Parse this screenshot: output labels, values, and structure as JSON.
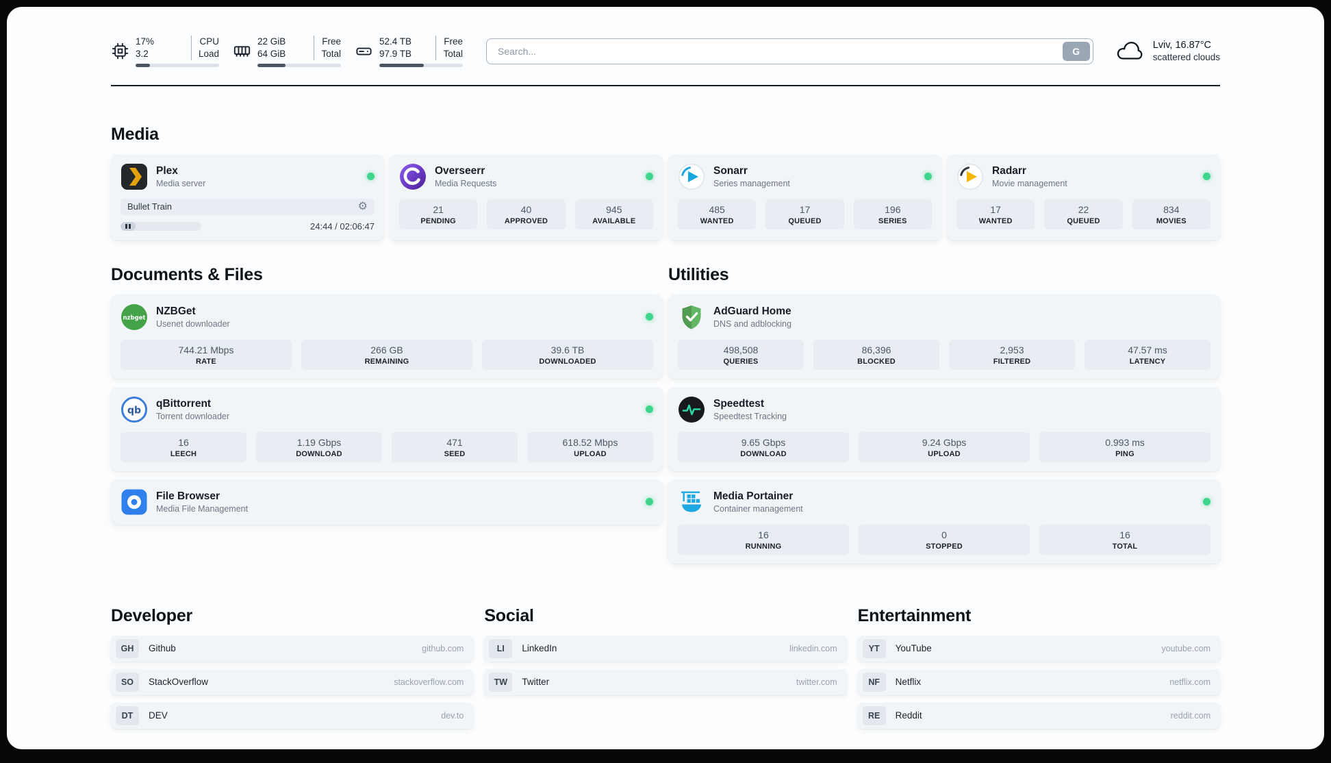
{
  "header": {
    "cpu": {
      "value_top": "17%",
      "value_bottom": "3.2",
      "label_top": "CPU",
      "label_bottom": "Load",
      "progress_pct": 17
    },
    "ram": {
      "value_top": "22 GiB",
      "value_bottom": "64 GiB",
      "label_top": "Free",
      "label_bottom": "Total",
      "progress_pct": 34
    },
    "disk": {
      "value_top": "52.4 TB",
      "value_bottom": "97.9 TB",
      "label_top": "Free",
      "label_bottom": "Total",
      "progress_pct": 53
    },
    "search": {
      "placeholder": "Search...",
      "button_label": "G"
    },
    "weather": {
      "location": "Lviv, 16.87°C",
      "condition": "scattered clouds"
    }
  },
  "icons": {
    "gear": "⚙"
  },
  "media": {
    "section_title": "Media",
    "plex": {
      "name": "Plex",
      "desc": "Media server",
      "now_playing": "Bullet Train",
      "time": "24:44 / 02:06:47",
      "progress_pct": 19
    },
    "overseerr": {
      "name": "Overseerr",
      "desc": "Media Requests",
      "stats": [
        {
          "value": "21",
          "label": "PENDING"
        },
        {
          "value": "40",
          "label": "APPROVED"
        },
        {
          "value": "945",
          "label": "AVAILABLE"
        }
      ]
    },
    "sonarr": {
      "name": "Sonarr",
      "desc": "Series management",
      "stats": [
        {
          "value": "485",
          "label": "WANTED"
        },
        {
          "value": "17",
          "label": "QUEUED"
        },
        {
          "value": "196",
          "label": "SERIES"
        }
      ]
    },
    "radarr": {
      "name": "Radarr",
      "desc": "Movie management",
      "stats": [
        {
          "value": "17",
          "label": "WANTED"
        },
        {
          "value": "22",
          "label": "QUEUED"
        },
        {
          "value": "834",
          "label": "MOVIES"
        }
      ]
    }
  },
  "documents": {
    "section_title": "Documents & Files",
    "nzbget": {
      "name": "NZBGet",
      "desc": "Usenet downloader",
      "icon_text": "nzbget",
      "stats": [
        {
          "value": "744.21 Mbps",
          "label": "RATE"
        },
        {
          "value": "266 GB",
          "label": "REMAINING"
        },
        {
          "value": "39.6 TB",
          "label": "DOWNLOADED"
        }
      ]
    },
    "qbittorrent": {
      "name": "qBittorrent",
      "desc": "Torrent downloader",
      "icon_text": "qb",
      "stats": [
        {
          "value": "16",
          "label": "LEECH"
        },
        {
          "value": "1.19 Gbps",
          "label": "DOWNLOAD"
        },
        {
          "value": "471",
          "label": "SEED"
        },
        {
          "value": "618.52 Mbps",
          "label": "UPLOAD"
        }
      ]
    },
    "filebrowser": {
      "name": "File Browser",
      "desc": "Media File Management"
    }
  },
  "utilities": {
    "section_title": "Utilities",
    "adguard": {
      "name": "AdGuard Home",
      "desc": "DNS and adblocking",
      "stats": [
        {
          "value": "498,508",
          "label": "QUERIES"
        },
        {
          "value": "86,396",
          "label": "BLOCKED"
        },
        {
          "value": "2,953",
          "label": "FILTERED"
        },
        {
          "value": "47.57 ms",
          "label": "LATENCY"
        }
      ]
    },
    "speedtest": {
      "name": "Speedtest",
      "desc": "Speedtest Tracking",
      "stats": [
        {
          "value": "9.65 Gbps",
          "label": "DOWNLOAD"
        },
        {
          "value": "9.24 Gbps",
          "label": "UPLOAD"
        },
        {
          "value": "0.993 ms",
          "label": "PING"
        }
      ]
    },
    "portainer": {
      "name": "Media Portainer",
      "desc": "Container management",
      "stats": [
        {
          "value": "16",
          "label": "RUNNING"
        },
        {
          "value": "0",
          "label": "STOPPED"
        },
        {
          "value": "16",
          "label": "TOTAL"
        }
      ]
    }
  },
  "bookmarks": {
    "developer": {
      "section_title": "Developer",
      "items": [
        {
          "abbr": "GH",
          "name": "Github",
          "domain": "github.com"
        },
        {
          "abbr": "SO",
          "name": "StackOverflow",
          "domain": "stackoverflow.com"
        },
        {
          "abbr": "DT",
          "name": "DEV",
          "domain": "dev.to"
        }
      ]
    },
    "social": {
      "section_title": "Social",
      "items": [
        {
          "abbr": "LI",
          "name": "LinkedIn",
          "domain": "linkedin.com"
        },
        {
          "abbr": "TW",
          "name": "Twitter",
          "domain": "twitter.com"
        }
      ]
    },
    "entertainment": {
      "section_title": "Entertainment",
      "items": [
        {
          "abbr": "YT",
          "name": "YouTube",
          "domain": "youtube.com"
        },
        {
          "abbr": "NF",
          "name": "Netflix",
          "domain": "netflix.com"
        },
        {
          "abbr": "RE",
          "name": "Reddit",
          "domain": "reddit.com"
        }
      ]
    }
  },
  "colors": {
    "status_online": "#3fd58c",
    "plex_accent": "#e5a00d",
    "overseerr_accent": "#7c3aed",
    "sonarr_accent": "#19a8dd",
    "radarr_accent": "#f7b500",
    "nzbget_accent": "#44a248",
    "qbittorrent_accent": "#3b7dd8",
    "filebrowser_accent": "#2f80ed",
    "adguard_accent": "#63b663",
    "speedtest_accent": "#2bd4a4",
    "portainer_accent": "#1da8e2"
  }
}
